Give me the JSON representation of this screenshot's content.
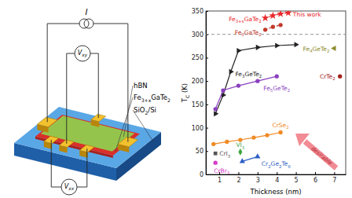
{
  "chart_data": {
    "type": "scatter",
    "x_label": "Thickness (nm)",
    "y_label": "TC (K)",
    "xlim": [
      0.3,
      7.6
    ],
    "xticks": [
      1,
      2,
      3,
      4,
      5,
      6,
      7
    ],
    "ylim": [
      0,
      350
    ],
    "yticks": [
      0,
      50,
      100,
      150,
      200,
      250,
      300,
      350
    ],
    "reference_line": 300,
    "annotations": [
      "This work",
      "desirable"
    ],
    "series": [
      {
        "name": "Fe3+xGaTe2",
        "color": "#e8262a",
        "marker": "star",
        "line_style": "dashed",
        "x": [
          3.4,
          3.8,
          4.2,
          4.6
        ],
        "values": [
          335,
          340,
          344,
          346
        ]
      },
      {
        "name": "Fe3GaTe2",
        "color": "#c0392b",
        "marker": "circle",
        "line_style": "dashed",
        "x": [
          3.4,
          3.8,
          4.2
        ],
        "values": [
          310,
          316,
          320
        ]
      },
      {
        "name": "Fe3GeTe2",
        "color": "#222222",
        "marker": "triangle-right",
        "line_style": "solid",
        "x": [
          0.8,
          1.2,
          1.6,
          2.0,
          3.0,
          4.0,
          5.0
        ],
        "values": [
          130,
          170,
          220,
          265,
          272,
          276,
          278
        ]
      },
      {
        "name": "Fe5GeTe2",
        "color": "#8a3fbf",
        "marker": "circle",
        "line_style": "solid",
        "x": [
          0.8,
          1.2,
          2.0,
          3.0,
          4.0
        ],
        "values": [
          140,
          180,
          190,
          200,
          210
        ]
      },
      {
        "name": "CrSe2",
        "color": "#f08a24",
        "marker": "circle",
        "line_style": "solid",
        "x": [
          0.7,
          1.4,
          2.1,
          2.8,
          3.5,
          4.2
        ],
        "values": [
          65,
          70,
          74,
          79,
          84,
          90
        ]
      },
      {
        "name": "CrI3",
        "color": "#555555",
        "marker": "square",
        "line_style": "none",
        "x": [
          0.8
        ],
        "values": [
          45
        ]
      },
      {
        "name": "VI3",
        "color": "#3aa53a",
        "marker": "diamond",
        "line_style": "none",
        "x": [
          2.1
        ],
        "values": [
          48
        ]
      },
      {
        "name": "Cr2Ge2Te6",
        "color": "#2d5fc4",
        "marker": "triangle",
        "line_style": "solid",
        "x": [
          2.2,
          3.0
        ],
        "values": [
          28,
          38
        ]
      },
      {
        "name": "CrBr3",
        "color": "#d63cc8",
        "marker": "circle",
        "line_style": "none",
        "x": [
          0.8
        ],
        "values": [
          25
        ]
      },
      {
        "name": "Fe4GeTe2",
        "color": "#8a8a2a",
        "marker": "triangle-left",
        "line_style": "none",
        "x": [
          7.0
        ],
        "values": [
          270
        ]
      },
      {
        "name": "CrTe2",
        "color": "#a3201a",
        "marker": "circle",
        "line_style": "none",
        "x": [
          7.3
        ],
        "values": [
          210
        ]
      }
    ]
  },
  "diagram": {
    "labels": {
      "current": "I",
      "vxy": "Vxy",
      "vxx": "Vxx",
      "top_layer": "hBN",
      "film": "Fe3+xGaTe2",
      "substrate": "SiO2/Si"
    }
  }
}
